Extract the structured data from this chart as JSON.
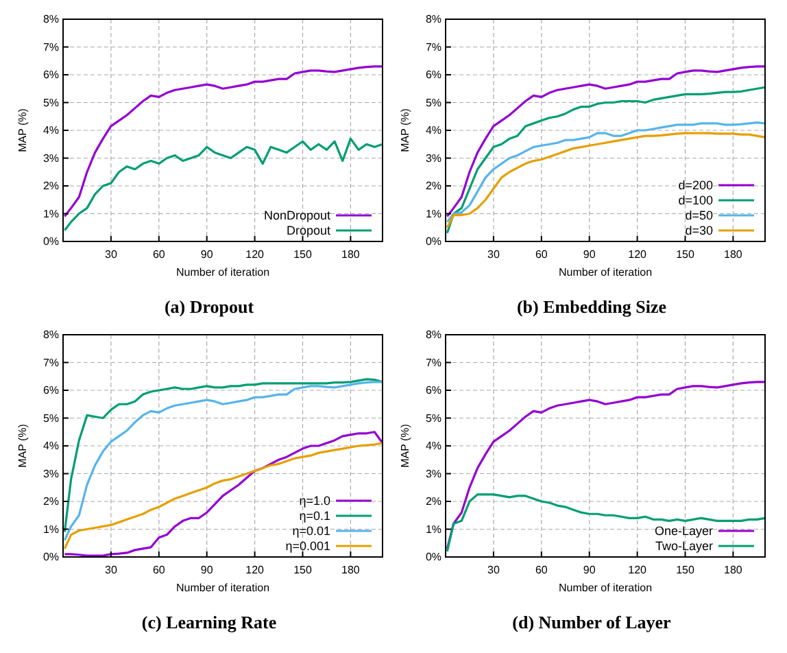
{
  "chart_data": [
    {
      "type": "line",
      "title": "(a) Dropout",
      "xlabel": "Number of iteration",
      "ylabel": "MAP (%)",
      "xlim": [
        0,
        200
      ],
      "xticks": [
        30,
        60,
        90,
        120,
        150,
        180
      ],
      "ylim": [
        0,
        8
      ],
      "yticks": [
        {
          "value": 0,
          "label": "0%"
        },
        {
          "value": 1,
          "label": "1%"
        },
        {
          "value": 2,
          "label": "2%"
        },
        {
          "value": 3,
          "label": "3%"
        },
        {
          "value": 4,
          "label": "4%"
        },
        {
          "value": 5,
          "label": "5%"
        },
        {
          "value": 6,
          "label": "6%"
        },
        {
          "value": 7,
          "label": "7%"
        },
        {
          "value": 8,
          "label": "8%"
        }
      ],
      "grid": true,
      "legend": "bottom right",
      "x": [
        1,
        5,
        10,
        15,
        20,
        25,
        30,
        35,
        40,
        45,
        50,
        55,
        60,
        65,
        70,
        75,
        80,
        85,
        90,
        95,
        100,
        105,
        110,
        115,
        120,
        125,
        130,
        135,
        140,
        145,
        150,
        155,
        160,
        165,
        170,
        175,
        180,
        185,
        190,
        195,
        200
      ],
      "series": [
        {
          "name": "NonDropout",
          "color": "#9400d3",
          "values": [
            0.9,
            1.2,
            1.6,
            2.5,
            3.2,
            3.7,
            4.15,
            4.35,
            4.55,
            4.8,
            5.05,
            5.25,
            5.2,
            5.35,
            5.45,
            5.5,
            5.55,
            5.6,
            5.65,
            5.6,
            5.5,
            5.55,
            5.6,
            5.65,
            5.75,
            5.75,
            5.8,
            5.85,
            5.85,
            6.05,
            6.1,
            6.15,
            6.15,
            6.12,
            6.1,
            6.15,
            6.2,
            6.25,
            6.28,
            6.3,
            6.3
          ]
        },
        {
          "name": "Dropout",
          "color": "#009e73",
          "values": [
            0.4,
            0.7,
            1.0,
            1.2,
            1.7,
            2.0,
            2.1,
            2.5,
            2.7,
            2.6,
            2.8,
            2.9,
            2.8,
            3.0,
            3.1,
            2.9,
            3.0,
            3.1,
            3.4,
            3.2,
            3.1,
            3.0,
            3.2,
            3.4,
            3.3,
            2.8,
            3.4,
            3.3,
            3.2,
            3.4,
            3.6,
            3.3,
            3.5,
            3.3,
            3.6,
            2.9,
            3.7,
            3.3,
            3.5,
            3.4,
            3.5
          ]
        }
      ]
    },
    {
      "type": "line",
      "title": "(b) Embedding Size",
      "xlabel": "Number of iteration",
      "ylabel": "MAP (%)",
      "xlim": [
        0,
        200
      ],
      "xticks": [
        30,
        60,
        90,
        120,
        150,
        180
      ],
      "ylim": [
        0,
        8
      ],
      "yticks": [
        {
          "value": 0,
          "label": "0%"
        },
        {
          "value": 1,
          "label": "1%"
        },
        {
          "value": 2,
          "label": "2%"
        },
        {
          "value": 3,
          "label": "3%"
        },
        {
          "value": 4,
          "label": "4%"
        },
        {
          "value": 5,
          "label": "5%"
        },
        {
          "value": 6,
          "label": "6%"
        },
        {
          "value": 7,
          "label": "7%"
        },
        {
          "value": 8,
          "label": "8%"
        }
      ],
      "grid": true,
      "legend": "bottom right",
      "x": [
        1,
        5,
        10,
        15,
        20,
        25,
        30,
        35,
        40,
        45,
        50,
        55,
        60,
        65,
        70,
        75,
        80,
        85,
        90,
        95,
        100,
        105,
        110,
        115,
        120,
        125,
        130,
        135,
        140,
        145,
        150,
        155,
        160,
        165,
        170,
        175,
        180,
        185,
        190,
        195,
        200
      ],
      "series": [
        {
          "name": "d=200",
          "color": "#9400d3",
          "values": [
            0.9,
            1.2,
            1.6,
            2.5,
            3.2,
            3.7,
            4.15,
            4.35,
            4.55,
            4.8,
            5.05,
            5.25,
            5.2,
            5.35,
            5.45,
            5.5,
            5.55,
            5.6,
            5.65,
            5.6,
            5.5,
            5.55,
            5.6,
            5.65,
            5.75,
            5.75,
            5.8,
            5.85,
            5.85,
            6.05,
            6.1,
            6.15,
            6.15,
            6.12,
            6.1,
            6.15,
            6.2,
            6.25,
            6.28,
            6.3,
            6.3
          ]
        },
        {
          "name": "d=100",
          "color": "#009e73",
          "values": [
            0.3,
            1.0,
            1.2,
            1.9,
            2.6,
            3.0,
            3.4,
            3.5,
            3.7,
            3.8,
            4.15,
            4.25,
            4.35,
            4.45,
            4.5,
            4.6,
            4.75,
            4.85,
            4.85,
            4.95,
            5.0,
            5.0,
            5.05,
            5.05,
            5.05,
            5.0,
            5.1,
            5.15,
            5.2,
            5.25,
            5.3,
            5.3,
            5.3,
            5.32,
            5.35,
            5.38,
            5.38,
            5.4,
            5.45,
            5.5,
            5.55
          ]
        },
        {
          "name": "d=50",
          "color": "#56b4e9",
          "values": [
            0.7,
            1.0,
            1.05,
            1.3,
            1.8,
            2.3,
            2.6,
            2.8,
            3.0,
            3.1,
            3.25,
            3.4,
            3.45,
            3.5,
            3.55,
            3.65,
            3.65,
            3.7,
            3.75,
            3.9,
            3.9,
            3.8,
            3.8,
            3.9,
            4.0,
            4.0,
            4.05,
            4.1,
            4.15,
            4.2,
            4.2,
            4.2,
            4.25,
            4.25,
            4.25,
            4.2,
            4.2,
            4.22,
            4.25,
            4.28,
            4.25
          ]
        },
        {
          "name": "d=30",
          "color": "#e69f00",
          "values": [
            0.5,
            0.95,
            0.95,
            1.0,
            1.2,
            1.5,
            1.9,
            2.3,
            2.5,
            2.65,
            2.8,
            2.9,
            2.95,
            3.05,
            3.15,
            3.25,
            3.35,
            3.4,
            3.45,
            3.5,
            3.55,
            3.6,
            3.65,
            3.7,
            3.75,
            3.8,
            3.8,
            3.82,
            3.85,
            3.88,
            3.9,
            3.9,
            3.9,
            3.9,
            3.88,
            3.88,
            3.88,
            3.85,
            3.85,
            3.8,
            3.75
          ]
        }
      ]
    },
    {
      "type": "line",
      "title": "(c) Learning Rate",
      "xlabel": "Number of iteration",
      "ylabel": "MAP (%)",
      "xlim": [
        0,
        200
      ],
      "xticks": [
        30,
        60,
        90,
        120,
        150,
        180
      ],
      "ylim": [
        0,
        8
      ],
      "yticks": [
        {
          "value": 0,
          "label": "0%"
        },
        {
          "value": 1,
          "label": "1%"
        },
        {
          "value": 2,
          "label": "2%"
        },
        {
          "value": 3,
          "label": "3%"
        },
        {
          "value": 4,
          "label": "4%"
        },
        {
          "value": 5,
          "label": "5%"
        },
        {
          "value": 6,
          "label": "6%"
        },
        {
          "value": 7,
          "label": "7%"
        },
        {
          "value": 8,
          "label": "8%"
        }
      ],
      "grid": true,
      "legend": "bottom right",
      "x": [
        1,
        5,
        10,
        15,
        20,
        25,
        30,
        35,
        40,
        45,
        50,
        55,
        60,
        65,
        70,
        75,
        80,
        85,
        90,
        95,
        100,
        105,
        110,
        115,
        120,
        125,
        130,
        135,
        140,
        145,
        150,
        155,
        160,
        165,
        170,
        175,
        180,
        185,
        190,
        195,
        200
      ],
      "series": [
        {
          "name": "η=1.0",
          "color": "#9400d3",
          "values": [
            0.1,
            0.1,
            0.08,
            0.05,
            0.05,
            0.05,
            0.1,
            0.12,
            0.15,
            0.25,
            0.3,
            0.35,
            0.7,
            0.8,
            1.1,
            1.3,
            1.4,
            1.4,
            1.6,
            1.9,
            2.2,
            2.4,
            2.6,
            2.85,
            3.1,
            3.2,
            3.35,
            3.5,
            3.6,
            3.75,
            3.9,
            4.0,
            4.0,
            4.1,
            4.2,
            4.35,
            4.4,
            4.45,
            4.45,
            4.5,
            4.1
          ]
        },
        {
          "name": "η=0.1",
          "color": "#009e73",
          "values": [
            0.9,
            2.8,
            4.2,
            5.1,
            5.05,
            5.0,
            5.3,
            5.5,
            5.5,
            5.6,
            5.85,
            5.95,
            6.0,
            6.05,
            6.1,
            6.05,
            6.05,
            6.1,
            6.15,
            6.1,
            6.1,
            6.15,
            6.15,
            6.2,
            6.2,
            6.25,
            6.25,
            6.25,
            6.25,
            6.25,
            6.25,
            6.25,
            6.25,
            6.25,
            6.28,
            6.28,
            6.3,
            6.35,
            6.4,
            6.38,
            6.3
          ]
        },
        {
          "name": "η=0.01",
          "color": "#56b4e9",
          "values": [
            0.6,
            1.1,
            1.5,
            2.6,
            3.3,
            3.8,
            4.15,
            4.35,
            4.55,
            4.85,
            5.1,
            5.25,
            5.2,
            5.35,
            5.45,
            5.5,
            5.55,
            5.6,
            5.65,
            5.6,
            5.5,
            5.55,
            5.6,
            5.65,
            5.75,
            5.75,
            5.8,
            5.85,
            5.85,
            6.05,
            6.1,
            6.15,
            6.15,
            6.12,
            6.1,
            6.15,
            6.2,
            6.25,
            6.28,
            6.3,
            6.3
          ]
        },
        {
          "name": "η=0.001",
          "color": "#e69f00",
          "values": [
            0.3,
            0.8,
            0.95,
            1.0,
            1.05,
            1.1,
            1.15,
            1.25,
            1.35,
            1.45,
            1.55,
            1.7,
            1.8,
            1.95,
            2.1,
            2.2,
            2.3,
            2.4,
            2.5,
            2.65,
            2.75,
            2.8,
            2.9,
            3.0,
            3.1,
            3.2,
            3.3,
            3.35,
            3.45,
            3.55,
            3.6,
            3.65,
            3.75,
            3.8,
            3.85,
            3.9,
            3.95,
            4.0,
            4.02,
            4.05,
            4.1
          ]
        }
      ]
    },
    {
      "type": "line",
      "title": "(d) Number of Layer",
      "xlabel": "Number of iteration",
      "ylabel": "MAP (%)",
      "xlim": [
        0,
        200
      ],
      "xticks": [
        30,
        60,
        90,
        120,
        150,
        180
      ],
      "ylim": [
        0,
        8
      ],
      "yticks": [
        {
          "value": 0,
          "label": "0%"
        },
        {
          "value": 1,
          "label": "1%"
        },
        {
          "value": 2,
          "label": "2%"
        },
        {
          "value": 3,
          "label": "3%"
        },
        {
          "value": 4,
          "label": "4%"
        },
        {
          "value": 5,
          "label": "5%"
        },
        {
          "value": 6,
          "label": "6%"
        },
        {
          "value": 7,
          "label": "7%"
        },
        {
          "value": 8,
          "label": "8%"
        }
      ],
      "grid": true,
      "legend": "bottom right",
      "x": [
        1,
        5,
        10,
        15,
        20,
        25,
        30,
        35,
        40,
        45,
        50,
        55,
        60,
        65,
        70,
        75,
        80,
        85,
        90,
        95,
        100,
        105,
        110,
        115,
        120,
        125,
        130,
        135,
        140,
        145,
        150,
        155,
        160,
        165,
        170,
        175,
        180,
        185,
        190,
        195,
        200
      ],
      "series": [
        {
          "name": "One-Layer",
          "color": "#9400d3",
          "values": [
            0.3,
            1.2,
            1.6,
            2.5,
            3.2,
            3.7,
            4.15,
            4.35,
            4.55,
            4.8,
            5.05,
            5.25,
            5.2,
            5.35,
            5.45,
            5.5,
            5.55,
            5.6,
            5.65,
            5.6,
            5.5,
            5.55,
            5.6,
            5.65,
            5.75,
            5.75,
            5.8,
            5.85,
            5.85,
            6.05,
            6.1,
            6.15,
            6.15,
            6.12,
            6.1,
            6.15,
            6.2,
            6.25,
            6.28,
            6.3,
            6.3
          ]
        },
        {
          "name": "Two-Layer",
          "color": "#009e73",
          "values": [
            0.2,
            1.2,
            1.3,
            2.0,
            2.25,
            2.25,
            2.25,
            2.2,
            2.15,
            2.2,
            2.2,
            2.1,
            2.0,
            1.95,
            1.85,
            1.8,
            1.7,
            1.6,
            1.55,
            1.55,
            1.5,
            1.5,
            1.45,
            1.4,
            1.4,
            1.45,
            1.35,
            1.35,
            1.3,
            1.35,
            1.3,
            1.35,
            1.4,
            1.35,
            1.3,
            1.3,
            1.3,
            1.3,
            1.35,
            1.35,
            1.4
          ]
        }
      ]
    }
  ]
}
